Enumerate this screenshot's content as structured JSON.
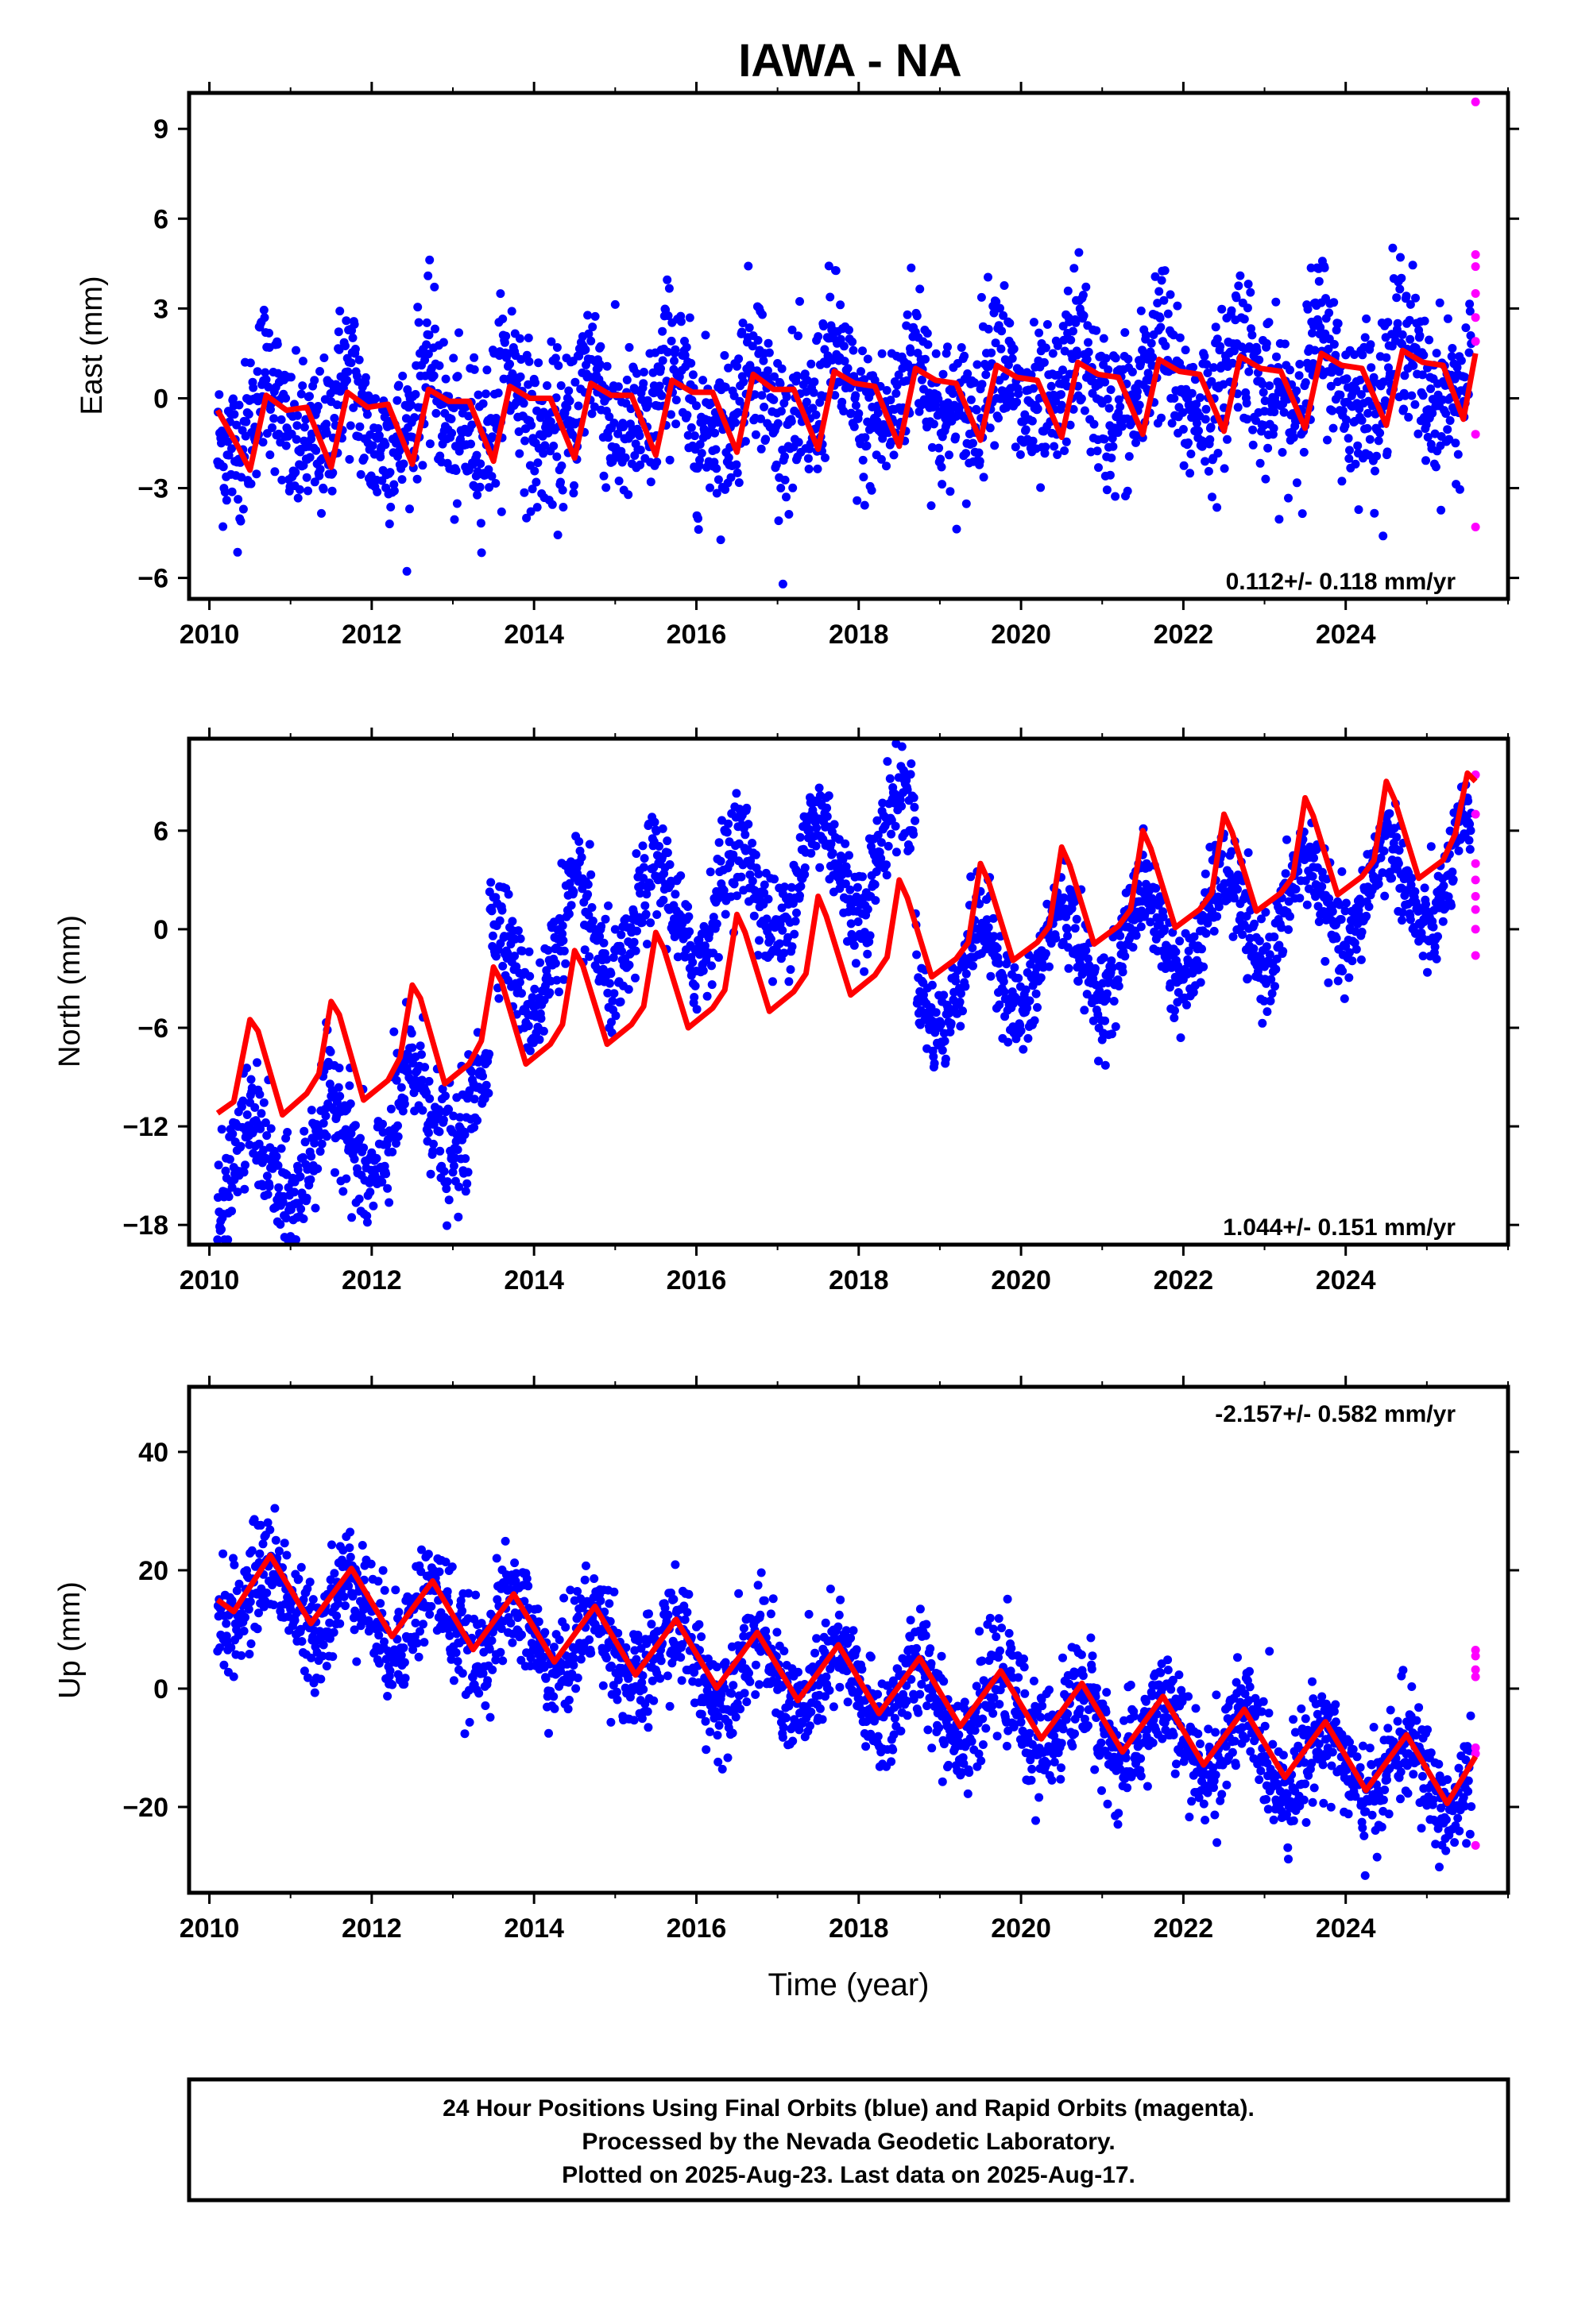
{
  "title": "IAWA - NA",
  "colors": {
    "final": "#0000ff",
    "rapid": "#ff00ff",
    "fit": "#ff0000",
    "frame": "#000000"
  },
  "footer": {
    "line1": "24 Hour Positions Using Final Orbits (blue) and Rapid Orbits (magenta).",
    "line2": "Processed by the Nevada Geodetic Laboratory.",
    "line3": "Plotted on 2025-Aug-23. Last data on 2025-Aug-17."
  },
  "chart_data": [
    {
      "type": "scatter",
      "component": "east",
      "ylabel": "East (mm)",
      "xlabel": "",
      "xlim": [
        2009.75,
        2026.0
      ],
      "ylim": [
        -6.7,
        10.2
      ],
      "xticks": [
        2010,
        2012,
        2014,
        2016,
        2018,
        2020,
        2022,
        2024
      ],
      "yticks": [
        -6,
        -3,
        0,
        3,
        6,
        9
      ],
      "rate_label": "0.112+/- 0.118 mm/yr",
      "rate_position": "bottom-right",
      "grid": false,
      "data_span": [
        2010.1,
        2025.55
      ],
      "trend": {
        "t0": 2010.1,
        "y0": -0.9,
        "rate": 0.112
      },
      "seasonal": {
        "annual_amp": 1.2,
        "annual_phase_year": 2010.7,
        "semiannual_amp": 0.5
      },
      "scatter_sd": 1.3,
      "rapid_points": [
        [
          2025.6,
          9.9
        ],
        [
          2025.6,
          4.8
        ],
        [
          2025.6,
          4.4
        ],
        [
          2025.6,
          3.5
        ],
        [
          2025.6,
          2.7
        ],
        [
          2025.6,
          1.9
        ],
        [
          2025.6,
          -1.2
        ],
        [
          2025.6,
          -4.3
        ]
      ],
      "fit_points": [
        [
          2010.1,
          -0.4
        ],
        [
          2010.35,
          -1.6
        ],
        [
          2010.5,
          -2.4
        ],
        [
          2010.7,
          0.1
        ],
        [
          2010.95,
          -0.4
        ],
        [
          2011.2,
          -0.3
        ],
        [
          2011.5,
          -2.3
        ],
        [
          2011.7,
          0.2
        ],
        [
          2011.95,
          -0.3
        ],
        [
          2012.2,
          -0.2
        ],
        [
          2012.5,
          -2.2
        ],
        [
          2012.7,
          0.3
        ],
        [
          2012.95,
          -0.1
        ],
        [
          2013.2,
          -0.1
        ],
        [
          2013.5,
          -2.1
        ],
        [
          2013.7,
          0.4
        ],
        [
          2013.95,
          0.0
        ],
        [
          2014.2,
          0.0
        ],
        [
          2014.5,
          -2.0
        ],
        [
          2014.7,
          0.5
        ],
        [
          2014.95,
          0.1
        ],
        [
          2015.2,
          0.1
        ],
        [
          2015.5,
          -1.9
        ],
        [
          2015.7,
          0.6
        ],
        [
          2015.95,
          0.2
        ],
        [
          2016.2,
          0.2
        ],
        [
          2016.5,
          -1.8
        ],
        [
          2016.7,
          0.8
        ],
        [
          2016.95,
          0.3
        ],
        [
          2017.2,
          0.3
        ],
        [
          2017.5,
          -1.7
        ],
        [
          2017.7,
          0.9
        ],
        [
          2017.95,
          0.5
        ],
        [
          2018.2,
          0.4
        ],
        [
          2018.5,
          -1.6
        ],
        [
          2018.7,
          1.0
        ],
        [
          2018.95,
          0.6
        ],
        [
          2019.2,
          0.5
        ],
        [
          2019.5,
          -1.4
        ],
        [
          2019.7,
          1.1
        ],
        [
          2019.95,
          0.7
        ],
        [
          2020.2,
          0.6
        ],
        [
          2020.5,
          -1.3
        ],
        [
          2020.7,
          1.2
        ],
        [
          2020.95,
          0.8
        ],
        [
          2021.2,
          0.7
        ],
        [
          2021.5,
          -1.2
        ],
        [
          2021.7,
          1.3
        ],
        [
          2021.95,
          0.9
        ],
        [
          2022.2,
          0.8
        ],
        [
          2022.5,
          -1.1
        ],
        [
          2022.7,
          1.4
        ],
        [
          2022.95,
          1.0
        ],
        [
          2023.2,
          0.9
        ],
        [
          2023.5,
          -1.0
        ],
        [
          2023.7,
          1.5
        ],
        [
          2023.95,
          1.1
        ],
        [
          2024.2,
          1.0
        ],
        [
          2024.5,
          -0.9
        ],
        [
          2024.7,
          1.6
        ],
        [
          2024.95,
          1.2
        ],
        [
          2025.2,
          1.1
        ],
        [
          2025.45,
          -0.7
        ],
        [
          2025.6,
          1.5
        ]
      ]
    },
    {
      "type": "scatter",
      "component": "north",
      "ylabel": "North (mm)",
      "xlabel": "",
      "xlim": [
        2009.75,
        2026.0
      ],
      "ylim": [
        -19.2,
        11.6
      ],
      "xticks": [
        2010,
        2012,
        2014,
        2016,
        2018,
        2020,
        2022,
        2024
      ],
      "yticks": [
        -18,
        -12,
        -6,
        0,
        6
      ],
      "rate_label": "1.044+/- 0.151 mm/yr",
      "rate_position": "bottom-right",
      "grid": false,
      "data_span": [
        2010.1,
        2025.55
      ],
      "data_segments": [
        {
          "from": 2010.1,
          "to": 2013.45,
          "base": -15.5,
          "rate": 1.6,
          "annual_amp": 3.0,
          "sd": 1.8
        },
        {
          "from": 2013.45,
          "to": 2018.7,
          "base": -2.5,
          "rate": 1.5,
          "annual_amp": 3.2,
          "sd": 1.6
        },
        {
          "from": 2018.7,
          "to": 2025.55,
          "base": -3.5,
          "rate": 1.0,
          "annual_amp": 3.0,
          "sd": 1.4
        }
      ],
      "rapid_points": [
        [
          2025.6,
          9.4
        ],
        [
          2025.6,
          7.0
        ],
        [
          2025.6,
          4.0
        ],
        [
          2025.6,
          3.0
        ],
        [
          2025.6,
          2.0
        ],
        [
          2025.6,
          1.2
        ],
        [
          2025.6,
          0.0
        ],
        [
          2025.6,
          -1.6
        ]
      ],
      "fit_points": [
        [
          2010.1,
          -11.2
        ],
        [
          2010.3,
          -10.5
        ],
        [
          2010.5,
          -5.5
        ],
        [
          2010.6,
          -6.2
        ],
        [
          2010.9,
          -11.3
        ],
        [
          2011.2,
          -10.0
        ],
        [
          2011.35,
          -8.8
        ],
        [
          2011.5,
          -4.4
        ],
        [
          2011.6,
          -5.2
        ],
        [
          2011.9,
          -10.4
        ],
        [
          2012.2,
          -9.2
        ],
        [
          2012.35,
          -7.8
        ],
        [
          2012.5,
          -3.4
        ],
        [
          2012.6,
          -4.2
        ],
        [
          2012.9,
          -9.4
        ],
        [
          2013.2,
          -8.2
        ],
        [
          2013.35,
          -6.8
        ],
        [
          2013.5,
          -2.3
        ],
        [
          2013.6,
          -3.2
        ],
        [
          2013.9,
          -8.2
        ],
        [
          2014.2,
          -7.0
        ],
        [
          2014.35,
          -5.8
        ],
        [
          2014.5,
          -1.3
        ],
        [
          2014.6,
          -2.2
        ],
        [
          2014.9,
          -7.0
        ],
        [
          2015.2,
          -5.8
        ],
        [
          2015.35,
          -4.7
        ],
        [
          2015.5,
          -0.2
        ],
        [
          2015.6,
          -1.2
        ],
        [
          2015.9,
          -6.0
        ],
        [
          2016.2,
          -4.8
        ],
        [
          2016.35,
          -3.7
        ],
        [
          2016.5,
          0.9
        ],
        [
          2016.6,
          -0.2
        ],
        [
          2016.9,
          -5.0
        ],
        [
          2017.2,
          -3.8
        ],
        [
          2017.35,
          -2.7
        ],
        [
          2017.5,
          2.0
        ],
        [
          2017.6,
          0.8
        ],
        [
          2017.9,
          -4.0
        ],
        [
          2018.2,
          -2.8
        ],
        [
          2018.35,
          -1.7
        ],
        [
          2018.5,
          3.0
        ],
        [
          2018.6,
          1.9
        ],
        [
          2018.9,
          -2.9
        ],
        [
          2019.2,
          -1.8
        ],
        [
          2019.35,
          -0.8
        ],
        [
          2019.5,
          4.0
        ],
        [
          2019.6,
          2.9
        ],
        [
          2019.9,
          -1.9
        ],
        [
          2020.2,
          -0.8
        ],
        [
          2020.35,
          0.2
        ],
        [
          2020.5,
          5.0
        ],
        [
          2020.6,
          3.9
        ],
        [
          2020.9,
          -0.9
        ],
        [
          2021.2,
          0.2
        ],
        [
          2021.35,
          1.2
        ],
        [
          2021.5,
          6.0
        ],
        [
          2021.6,
          4.9
        ],
        [
          2021.9,
          0.1
        ],
        [
          2022.2,
          1.2
        ],
        [
          2022.35,
          2.2
        ],
        [
          2022.5,
          7.0
        ],
        [
          2022.6,
          5.9
        ],
        [
          2022.9,
          1.1
        ],
        [
          2023.2,
          2.2
        ],
        [
          2023.35,
          3.2
        ],
        [
          2023.5,
          8.0
        ],
        [
          2023.6,
          6.9
        ],
        [
          2023.9,
          2.1
        ],
        [
          2024.2,
          3.2
        ],
        [
          2024.35,
          4.2
        ],
        [
          2024.5,
          9.0
        ],
        [
          2024.6,
          7.9
        ],
        [
          2024.9,
          3.1
        ],
        [
          2025.2,
          4.2
        ],
        [
          2025.35,
          5.8
        ],
        [
          2025.5,
          9.5
        ],
        [
          2025.6,
          9.0
        ]
      ]
    },
    {
      "type": "scatter",
      "component": "up",
      "ylabel": "Up (mm)",
      "xlabel": "Time (year)",
      "xlim": [
        2009.75,
        2026.0
      ],
      "ylim": [
        -34.5,
        51.0
      ],
      "xticks": [
        2010,
        2012,
        2014,
        2016,
        2018,
        2020,
        2022,
        2024
      ],
      "yticks": [
        -20,
        0,
        20,
        40
      ],
      "rate_label": "-2.157+/- 0.582 mm/yr",
      "rate_position": "top-right",
      "grid": false,
      "data_span": [
        2010.1,
        2025.55
      ],
      "trend": {
        "t0": 2010.1,
        "y0": 17.0,
        "rate": -2.157
      },
      "seasonal": {
        "annual_amp": 5.5,
        "annual_phase_year": 2010.75,
        "semiannual_amp": 0.0
      },
      "scatter_sd": 4.5,
      "rapid_points": [
        [
          2025.6,
          6.5
        ],
        [
          2025.6,
          5.5
        ],
        [
          2025.6,
          3.2
        ],
        [
          2025.6,
          2.0
        ],
        [
          2025.6,
          -10.0
        ],
        [
          2025.6,
          -11.0
        ],
        [
          2025.6,
          -26.5
        ]
      ],
      "fit_points": [
        [
          2010.1,
          15.0
        ],
        [
          2010.3,
          13.0
        ],
        [
          2010.75,
          22.5
        ],
        [
          2011.25,
          11.0
        ],
        [
          2011.75,
          20.3
        ],
        [
          2012.25,
          8.8
        ],
        [
          2012.75,
          18.2
        ],
        [
          2013.25,
          6.6
        ],
        [
          2013.75,
          16.0
        ],
        [
          2014.25,
          4.5
        ],
        [
          2014.75,
          13.9
        ],
        [
          2015.25,
          2.3
        ],
        [
          2015.75,
          11.7
        ],
        [
          2016.25,
          0.1
        ],
        [
          2016.75,
          9.5
        ],
        [
          2017.25,
          -2.0
        ],
        [
          2017.75,
          7.4
        ],
        [
          2018.25,
          -4.2
        ],
        [
          2018.75,
          5.2
        ],
        [
          2019.25,
          -6.4
        ],
        [
          2019.75,
          3.0
        ],
        [
          2020.25,
          -8.5
        ],
        [
          2020.75,
          0.9
        ],
        [
          2021.25,
          -10.7
        ],
        [
          2021.75,
          -1.3
        ],
        [
          2022.25,
          -12.9
        ],
        [
          2022.75,
          -3.5
        ],
        [
          2023.25,
          -15.0
        ],
        [
          2023.75,
          -5.6
        ],
        [
          2024.25,
          -17.2
        ],
        [
          2024.75,
          -7.8
        ],
        [
          2025.25,
          -19.4
        ],
        [
          2025.6,
          -11.5
        ]
      ]
    }
  ]
}
